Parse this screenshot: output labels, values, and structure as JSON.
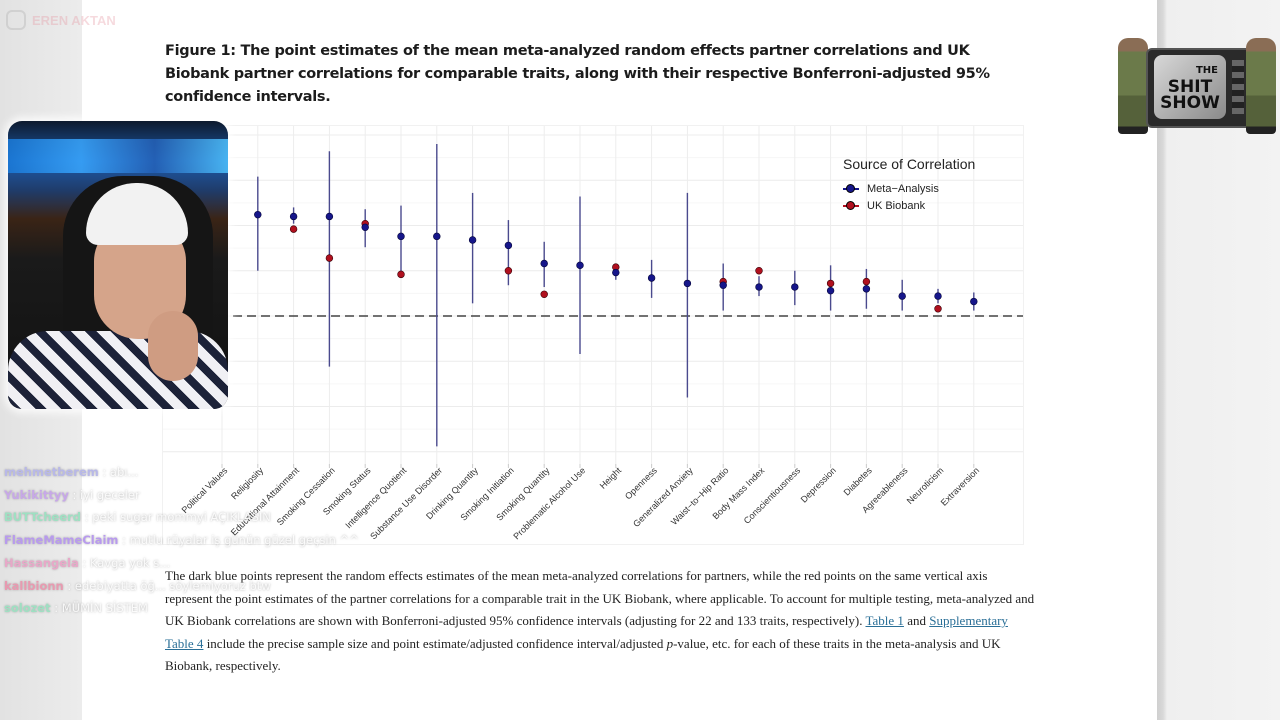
{
  "figure": {
    "title": "Figure 1: The point estimates of the mean meta-analyzed random effects partner correlations and UK Biobank partner correlations for comparable traits, along with their respective Bonferroni-adjusted 95% confidence intervals.",
    "caption": {
      "part1": "The dark blue points represent the random effects estimates of the mean meta-analyzed correlations for partners, while the red points on the same vertical axis represent the point estimates of the partner correlations for a comparable trait in the UK Biobank, where applicable. To account for multiple testing, meta-analyzed and UK Biobank correlations are shown with Bonferroni-adjusted 95% confidence intervals (adjusting for 22 and 133 traits, respectively). ",
      "link1": "Table 1",
      "part2": " and ",
      "link2": "Supplementary Table 4",
      "part3": " include the precise sample size and point estimate/adjusted confidence interval/adjusted ",
      "p_italic": "p",
      "part4": "-value, etc. for each of these traits in the meta-analysis and UK Biobank, respectively."
    }
  },
  "chart_data": {
    "type": "scatter",
    "subtype": "point-with-errorbars",
    "title": "",
    "xlabel": "",
    "ylabel": "",
    "ylim": [
      -0.75,
      1.0
    ],
    "reference_line": {
      "y": 0,
      "style": "dashed"
    },
    "grid": true,
    "legend": {
      "title": "Source of Correlation",
      "placement": "top-right",
      "entries": [
        {
          "name": "Meta−Analysis",
          "color": "#16168a"
        },
        {
          "name": "UK Biobank",
          "color": "#b0101e"
        }
      ]
    },
    "categories": [
      "Political Values",
      "Religiosity",
      "Educational Attainment",
      "Smoking Cessation",
      "Smoking Status",
      "Intelligence Quotient",
      "Substance Use Disorder",
      "Drinking Quantity",
      "Smoking Initiation",
      "Smoking Quantity",
      "Problematic Alcohol Use",
      "Height",
      "Openness",
      "Generalized Anxiety",
      "Waist−to−Hip Ratio",
      "Body Mass Index",
      "Conscientiousness",
      "Depression",
      "Diabetes",
      "Agreeableness",
      "Neuroticism",
      "Extraversion"
    ],
    "series": [
      {
        "name": "Meta−Analysis",
        "values": [
          0.58,
          0.56,
          0.55,
          0.55,
          0.49,
          0.44,
          0.44,
          0.42,
          0.39,
          0.29,
          0.28,
          0.24,
          0.21,
          0.18,
          0.17,
          0.16,
          0.16,
          0.14,
          0.15,
          0.11,
          0.11,
          0.08
        ],
        "ci_upper": [
          0.64,
          0.77,
          0.6,
          0.91,
          0.59,
          0.61,
          0.95,
          0.68,
          0.53,
          0.41,
          0.66,
          0.28,
          0.31,
          0.68,
          0.29,
          0.22,
          0.25,
          0.28,
          0.26,
          0.2,
          0.15,
          0.13
        ],
        "ci_lower": [
          0.5,
          0.25,
          0.51,
          -0.28,
          0.38,
          0.23,
          -0.72,
          0.07,
          0.17,
          0.16,
          -0.21,
          0.2,
          0.1,
          -0.45,
          0.03,
          0.11,
          0.06,
          0.03,
          0.04,
          0.03,
          0.07,
          0.03
        ]
      },
      {
        "name": "UK Biobank",
        "values": [
          null,
          null,
          0.48,
          0.32,
          0.51,
          0.23,
          null,
          null,
          0.25,
          0.12,
          null,
          0.27,
          null,
          null,
          0.19,
          0.25,
          null,
          0.18,
          0.19,
          null,
          0.04,
          null
        ]
      }
    ]
  },
  "overlays": {
    "watermark": "EREN AKTAN",
    "show_logo": {
      "line1": "THE",
      "line2": "SHIT",
      "line3": "SHOW"
    },
    "chat": [
      {
        "user": "mehmetberem",
        "msg": " : abı..."
      },
      {
        "user": "Yukikittyy",
        "msg": " : iyi geceler"
      },
      {
        "user": "BUTTcheerd",
        "msg": " : peki sugar mommyi AÇIKLASIN"
      },
      {
        "user": "FlameMameClaim",
        "msg": " : mutlu rüyalar iş günün güzel geçsin ^^"
      },
      {
        "user": "Hassangela",
        "msg": " : Kavga yok s..."
      },
      {
        "user": "kallbionn",
        "msg": " : edebiyatta öğ... söylemiyoruz btw"
      },
      {
        "user": "solozet",
        "msg": " : MÜMİN SİSTEM"
      }
    ]
  }
}
